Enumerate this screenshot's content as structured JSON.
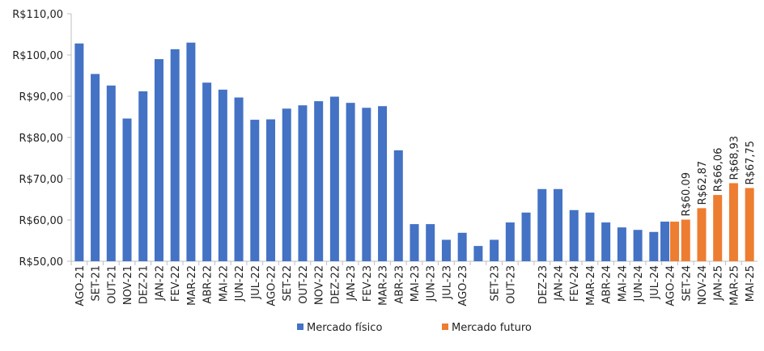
{
  "chart_data": {
    "type": "bar",
    "categories": [
      "AGO-21",
      "SET-21",
      "OUT-21",
      "NOV-21",
      "DEZ-21",
      "JAN-22",
      "FEV-22",
      "MAR-22",
      "ABR-22",
      "MAI-22",
      "JUN-22",
      "JUL-22",
      "AGO-22",
      "SET-22",
      "OUT-22",
      "NOV-22",
      "DEZ-22",
      "JAN-23",
      "FEV-23",
      "MAR-23",
      "ABR-23",
      "MAI-23",
      "JUN-23",
      "JUL-23",
      "AGO-23",
      null,
      "SET-23",
      "OUT-23",
      null,
      "DEZ-23",
      "JAN-24",
      "FEV-24",
      "MAR-24",
      "ABR-24",
      "MAI-24",
      "JUN-24",
      "JUL-24",
      "AGO-24",
      "SET-24",
      "NOV-24",
      "JAN-25",
      "MAR-25",
      "MAI-25"
    ],
    "series": [
      {
        "name": "Mercado físico",
        "color": "#4472c4",
        "values": [
          102.8,
          95.4,
          92.6,
          84.6,
          91.2,
          99,
          101.4,
          103,
          93.3,
          91.6,
          89.7,
          84.3,
          84.4,
          87,
          87.8,
          88.8,
          89.9,
          88.4,
          87.2,
          87.6,
          76.9,
          59,
          59,
          55.2,
          56.9,
          53.7,
          55.2,
          59.4,
          61.8,
          67.5,
          67.5,
          62.4,
          61.8,
          59.4,
          58.2,
          57.6,
          57.1,
          59.6,
          null,
          null,
          null,
          null,
          null
        ]
      },
      {
        "name": "Mercado futuro",
        "color": "#ed7d31",
        "values": [
          null,
          null,
          null,
          null,
          null,
          null,
          null,
          null,
          null,
          null,
          null,
          null,
          null,
          null,
          null,
          null,
          null,
          null,
          null,
          null,
          null,
          null,
          null,
          null,
          null,
          null,
          null,
          null,
          null,
          null,
          null,
          null,
          null,
          null,
          null,
          null,
          null,
          59.6,
          60.09,
          62.87,
          66.06,
          68.93,
          67.75
        ],
        "value_labels": [
          null,
          null,
          null,
          null,
          null,
          null,
          null,
          null,
          null,
          null,
          null,
          null,
          null,
          null,
          null,
          null,
          null,
          null,
          null,
          null,
          null,
          null,
          null,
          null,
          null,
          null,
          null,
          null,
          null,
          null,
          null,
          null,
          null,
          null,
          null,
          null,
          null,
          null,
          "R$60.09",
          "R$62,87",
          "R$66,06",
          "R$68,93",
          "R$67,75"
        ]
      }
    ],
    "ylim": [
      50,
      110
    ],
    "yticks": [
      {
        "value": 50,
        "label": "R$50,00"
      },
      {
        "value": 60,
        "label": "R$60,00"
      },
      {
        "value": 70,
        "label": "R$70,00"
      },
      {
        "value": 80,
        "label": "R$80,00"
      },
      {
        "value": 90,
        "label": "R$90,00"
      },
      {
        "value": 100,
        "label": "R$100,00"
      },
      {
        "value": 110,
        "label": "R$110,00"
      }
    ]
  }
}
